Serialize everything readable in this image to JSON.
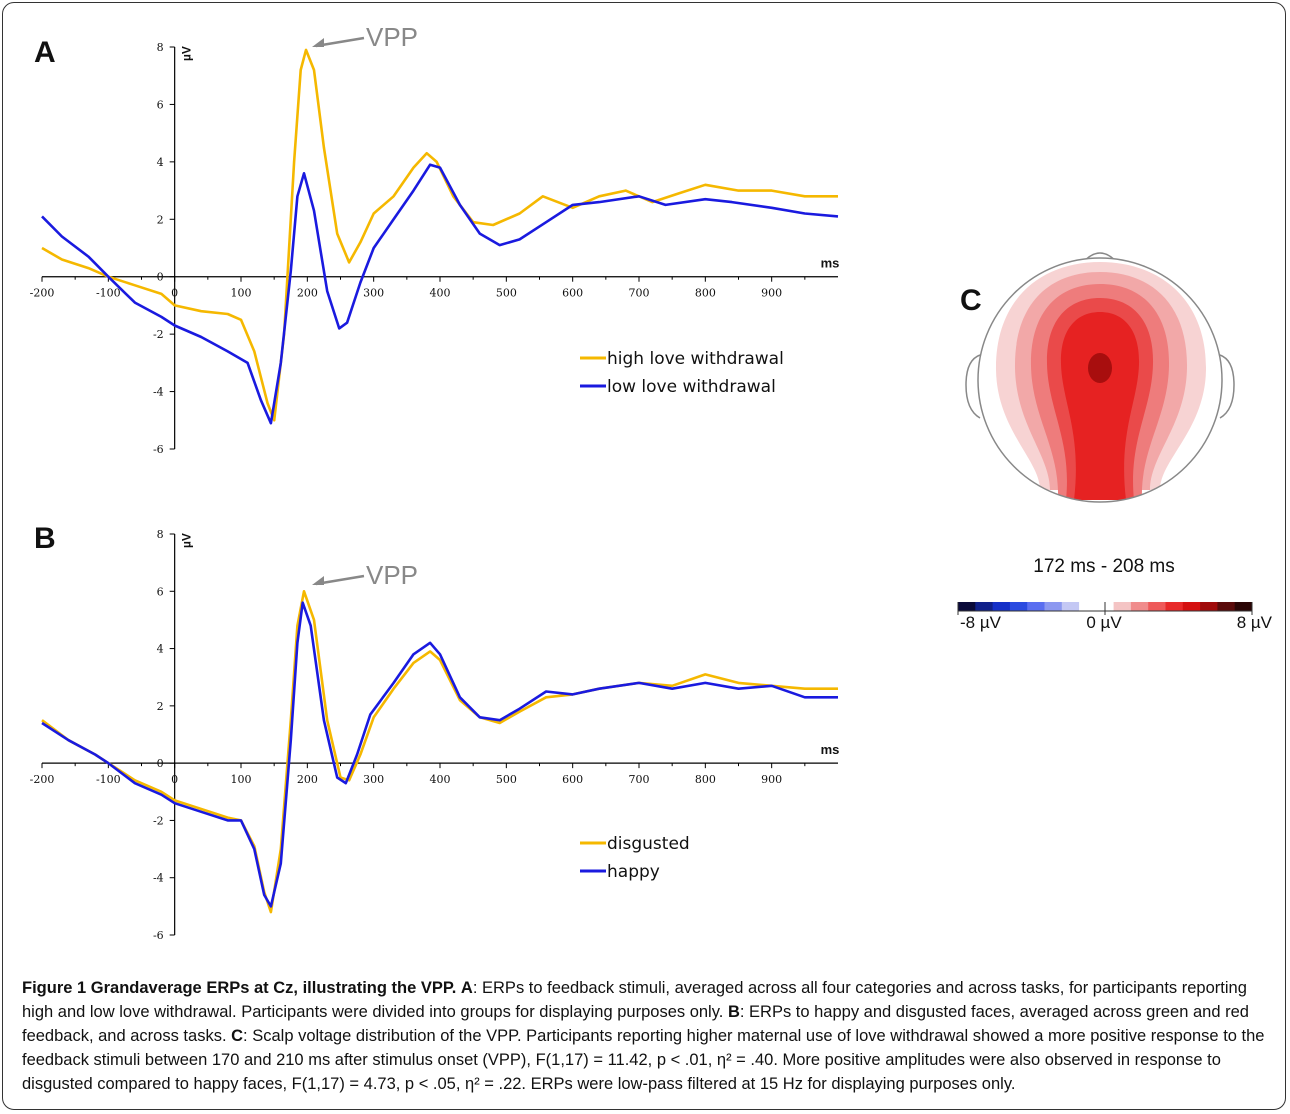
{
  "chart_data": [
    {
      "panel": "A",
      "type": "line",
      "xlabel": "ms",
      "ylabel": "µV",
      "xlim": [
        -200,
        1000
      ],
      "ylim": [
        -6,
        8
      ],
      "x_ticks": [
        "-200",
        "-100",
        "0",
        "100",
        "200",
        "300",
        "400",
        "500",
        "600",
        "700",
        "800",
        "900"
      ],
      "y_ticks": [
        "8",
        "6",
        "4",
        "2",
        "0",
        "-2",
        "-4",
        "-6"
      ],
      "annotation": "VPP",
      "legend_position": "right-center",
      "series": [
        {
          "name": "high love withdrawal",
          "color": "#f5b800",
          "points": [
            [
              -200,
              1.0
            ],
            [
              -170,
              0.6
            ],
            [
              -130,
              0.3
            ],
            [
              -100,
              0.0
            ],
            [
              -60,
              -0.3
            ],
            [
              -20,
              -0.6
            ],
            [
              0,
              -1.0
            ],
            [
              40,
              -1.2
            ],
            [
              80,
              -1.3
            ],
            [
              100,
              -1.5
            ],
            [
              120,
              -2.6
            ],
            [
              140,
              -4.4
            ],
            [
              150,
              -5.0
            ],
            [
              165,
              -2.0
            ],
            [
              180,
              4.0
            ],
            [
              190,
              7.2
            ],
            [
              198,
              7.9
            ],
            [
              210,
              7.2
            ],
            [
              225,
              4.5
            ],
            [
              245,
              1.5
            ],
            [
              263,
              0.5
            ],
            [
              280,
              1.2
            ],
            [
              300,
              2.2
            ],
            [
              330,
              2.8
            ],
            [
              360,
              3.8
            ],
            [
              380,
              4.3
            ],
            [
              395,
              4.0
            ],
            [
              420,
              2.8
            ],
            [
              450,
              1.9
            ],
            [
              480,
              1.8
            ],
            [
              520,
              2.2
            ],
            [
              555,
              2.8
            ],
            [
              600,
              2.4
            ],
            [
              640,
              2.8
            ],
            [
              680,
              3.0
            ],
            [
              720,
              2.6
            ],
            [
              760,
              2.9
            ],
            [
              800,
              3.2
            ],
            [
              850,
              3.0
            ],
            [
              900,
              3.0
            ],
            [
              950,
              2.8
            ],
            [
              1000,
              2.8
            ]
          ]
        },
        {
          "name": "low love withdrawal",
          "color": "#1a1adf",
          "points": [
            [
              -200,
              2.1
            ],
            [
              -170,
              1.4
            ],
            [
              -130,
              0.7
            ],
            [
              -100,
              0.0
            ],
            [
              -60,
              -0.9
            ],
            [
              -20,
              -1.4
            ],
            [
              0,
              -1.7
            ],
            [
              40,
              -2.1
            ],
            [
              80,
              -2.6
            ],
            [
              110,
              -3.0
            ],
            [
              130,
              -4.3
            ],
            [
              145,
              -5.1
            ],
            [
              160,
              -3.0
            ],
            [
              175,
              0.2
            ],
            [
              185,
              2.8
            ],
            [
              195,
              3.6
            ],
            [
              210,
              2.3
            ],
            [
              230,
              -0.5
            ],
            [
              248,
              -1.8
            ],
            [
              260,
              -1.6
            ],
            [
              280,
              -0.2
            ],
            [
              300,
              1.0
            ],
            [
              330,
              2.0
            ],
            [
              360,
              3.0
            ],
            [
              385,
              3.9
            ],
            [
              400,
              3.8
            ],
            [
              430,
              2.5
            ],
            [
              460,
              1.5
            ],
            [
              490,
              1.1
            ],
            [
              520,
              1.3
            ],
            [
              560,
              1.9
            ],
            [
              600,
              2.5
            ],
            [
              640,
              2.6
            ],
            [
              700,
              2.8
            ],
            [
              740,
              2.5
            ],
            [
              800,
              2.7
            ],
            [
              840,
              2.6
            ],
            [
              900,
              2.4
            ],
            [
              950,
              2.2
            ],
            [
              1000,
              2.1
            ]
          ]
        }
      ]
    },
    {
      "panel": "B",
      "type": "line",
      "xlabel": "ms",
      "ylabel": "µV",
      "xlim": [
        -200,
        1000
      ],
      "ylim": [
        -6,
        8
      ],
      "x_ticks": [
        "-200",
        "-100",
        "0",
        "100",
        "200",
        "300",
        "400",
        "500",
        "600",
        "700",
        "800",
        "900"
      ],
      "y_ticks": [
        "8",
        "6",
        "4",
        "2",
        "0",
        "-2",
        "-4",
        "-6"
      ],
      "annotation": "VPP",
      "legend_position": "right-bottom",
      "series": [
        {
          "name": "disgusted",
          "color": "#f5b800",
          "points": [
            [
              -200,
              1.5
            ],
            [
              -160,
              0.8
            ],
            [
              -120,
              0.3
            ],
            [
              -100,
              0.0
            ],
            [
              -60,
              -0.6
            ],
            [
              -20,
              -1.0
            ],
            [
              0,
              -1.3
            ],
            [
              40,
              -1.6
            ],
            [
              80,
              -1.9
            ],
            [
              100,
              -2.0
            ],
            [
              120,
              -2.9
            ],
            [
              135,
              -4.5
            ],
            [
              145,
              -5.2
            ],
            [
              160,
              -3.0
            ],
            [
              175,
              1.5
            ],
            [
              185,
              4.8
            ],
            [
              195,
              6.0
            ],
            [
              210,
              5.0
            ],
            [
              230,
              1.5
            ],
            [
              250,
              -0.5
            ],
            [
              263,
              -0.6
            ],
            [
              280,
              0.3
            ],
            [
              300,
              1.6
            ],
            [
              330,
              2.6
            ],
            [
              360,
              3.5
            ],
            [
              385,
              3.9
            ],
            [
              400,
              3.6
            ],
            [
              430,
              2.2
            ],
            [
              460,
              1.6
            ],
            [
              490,
              1.4
            ],
            [
              520,
              1.8
            ],
            [
              560,
              2.3
            ],
            [
              600,
              2.4
            ],
            [
              640,
              2.6
            ],
            [
              700,
              2.8
            ],
            [
              750,
              2.7
            ],
            [
              800,
              3.1
            ],
            [
              850,
              2.8
            ],
            [
              900,
              2.7
            ],
            [
              950,
              2.6
            ],
            [
              1000,
              2.6
            ]
          ]
        },
        {
          "name": "happy",
          "color": "#1a1adf",
          "points": [
            [
              -200,
              1.4
            ],
            [
              -160,
              0.8
            ],
            [
              -120,
              0.3
            ],
            [
              -100,
              0.0
            ],
            [
              -60,
              -0.7
            ],
            [
              -20,
              -1.1
            ],
            [
              0,
              -1.4
            ],
            [
              40,
              -1.7
            ],
            [
              80,
              -2.0
            ],
            [
              100,
              -2.0
            ],
            [
              120,
              -3.0
            ],
            [
              135,
              -4.6
            ],
            [
              145,
              -5.0
            ],
            [
              160,
              -3.5
            ],
            [
              175,
              0.8
            ],
            [
              185,
              4.2
            ],
            [
              193,
              5.6
            ],
            [
              205,
              4.8
            ],
            [
              225,
              1.5
            ],
            [
              245,
              -0.5
            ],
            [
              258,
              -0.7
            ],
            [
              275,
              0.3
            ],
            [
              295,
              1.7
            ],
            [
              330,
              2.8
            ],
            [
              360,
              3.8
            ],
            [
              385,
              4.2
            ],
            [
              400,
              3.8
            ],
            [
              430,
              2.3
            ],
            [
              460,
              1.6
            ],
            [
              490,
              1.5
            ],
            [
              520,
              1.9
            ],
            [
              560,
              2.5
            ],
            [
              600,
              2.4
            ],
            [
              640,
              2.6
            ],
            [
              700,
              2.8
            ],
            [
              750,
              2.6
            ],
            [
              800,
              2.8
            ],
            [
              850,
              2.6
            ],
            [
              900,
              2.7
            ],
            [
              950,
              2.3
            ],
            [
              1000,
              2.3
            ]
          ]
        }
      ]
    },
    {
      "panel": "C",
      "type": "heatmap",
      "time_window": "172 ms - 208 ms",
      "colorbar_labels": [
        "-8 µV",
        "0 µV",
        "8 µV"
      ],
      "colorbar_range": [
        -8,
        8
      ],
      "colorbar_colors": [
        "#0a0a3a",
        "#10208a",
        "#1530c8",
        "#2a4ae0",
        "#5a6ef0",
        "#8c98f0",
        "#c4c8f4",
        "#ffffff",
        "#ffffff",
        "#f4c4c4",
        "#f08c8c",
        "#ee5a5a",
        "#e82a2a",
        "#d41010",
        "#a00a0a",
        "#5a0a0a",
        "#2a0505"
      ]
    }
  ],
  "caption": {
    "title": "Figure 1 Grandaverage ERPs at Cz, illustrating the VPP.",
    "label_a": "A",
    "text_a": ": ERPs to feedback stimuli, averaged across all four categories and across tasks, for participants reporting high and low love withdrawal. Participants were divided into groups for displaying purposes only.",
    "label_b": "B",
    "text_b": ": ERPs to happy and disgusted faces, averaged across green and red feedback, and across tasks.",
    "label_c": "C",
    "text_c": ": Scalp voltage distribution of the VPP. Participants reporting higher maternal use of love withdrawal showed a more positive response to the feedback stimuli between 170 and 210 ms after stimulus onset (VPP), F(1,17) = 11.42, p < .01, η² = .40. More positive amplitudes were also observed in response to disgusted compared to happy faces, F(1,17) = 4.73, p < .05, η² = .22. ERPs were low-pass filtered at 15 Hz for displaying purposes only."
  }
}
